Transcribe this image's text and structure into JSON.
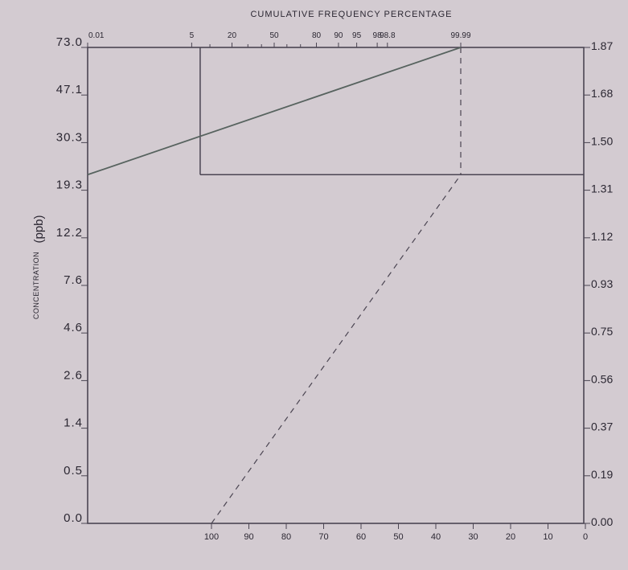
{
  "chart_data": {
    "type": "line",
    "top_axis": {
      "title": "CUMULATIVE FREQUENCY PERCENTAGE",
      "ticks": [
        {
          "label": "0.01",
          "value": 0.01
        },
        {
          "label": "5",
          "value": 5
        },
        {
          "label": "20",
          "value": 20
        },
        {
          "label": "50",
          "value": 50
        },
        {
          "label": "80",
          "value": 80
        },
        {
          "label": "90",
          "value": 90
        },
        {
          "label": "95",
          "value": 95
        },
        {
          "label": "98",
          "value": 98
        },
        {
          "label": "98.8",
          "value": 98.8
        },
        {
          "label": "99.99",
          "value": 99.99
        }
      ],
      "minor_ticks": [
        10,
        30,
        40,
        60,
        70
      ]
    },
    "left_axis": {
      "label_small": "CONCENTRATION",
      "label_big": "(ppb)",
      "ticks": [
        "73.0",
        "47.1",
        "30.3",
        "19.3",
        "12.2",
        "7.6",
        "4.6",
        "2.6",
        "1.4",
        "0.5",
        "0.0"
      ]
    },
    "right_axis": {
      "ticks": [
        "1.87",
        "1.68",
        "1.50",
        "1.31",
        "1.12",
        "0.93",
        "0.75",
        "0.56",
        "0.37",
        "0.19",
        "0.00"
      ]
    },
    "bottom_axis": {
      "ticks": [
        "100",
        "90",
        "80",
        "70",
        "60",
        "50",
        "40",
        "30",
        "20",
        "10",
        "0"
      ]
    },
    "series": [
      {
        "style": "solid",
        "x_percent": [
          0.01,
          99.99
        ],
        "y_log": [
          1.37,
          1.87
        ]
      },
      {
        "style": "dashed",
        "x_exceedance": [
          100,
          33.3
        ],
        "y_log": [
          0.0,
          1.37
        ]
      }
    ],
    "reference_lines": [
      {
        "style": "solid",
        "orientation": "vertical",
        "x_percent": 7
      },
      {
        "style": "solid",
        "orientation": "horizontal",
        "y_log": 1.37
      },
      {
        "style": "dashed",
        "orientation": "vertical",
        "x_percent": 99.99
      }
    ],
    "grid": false
  }
}
